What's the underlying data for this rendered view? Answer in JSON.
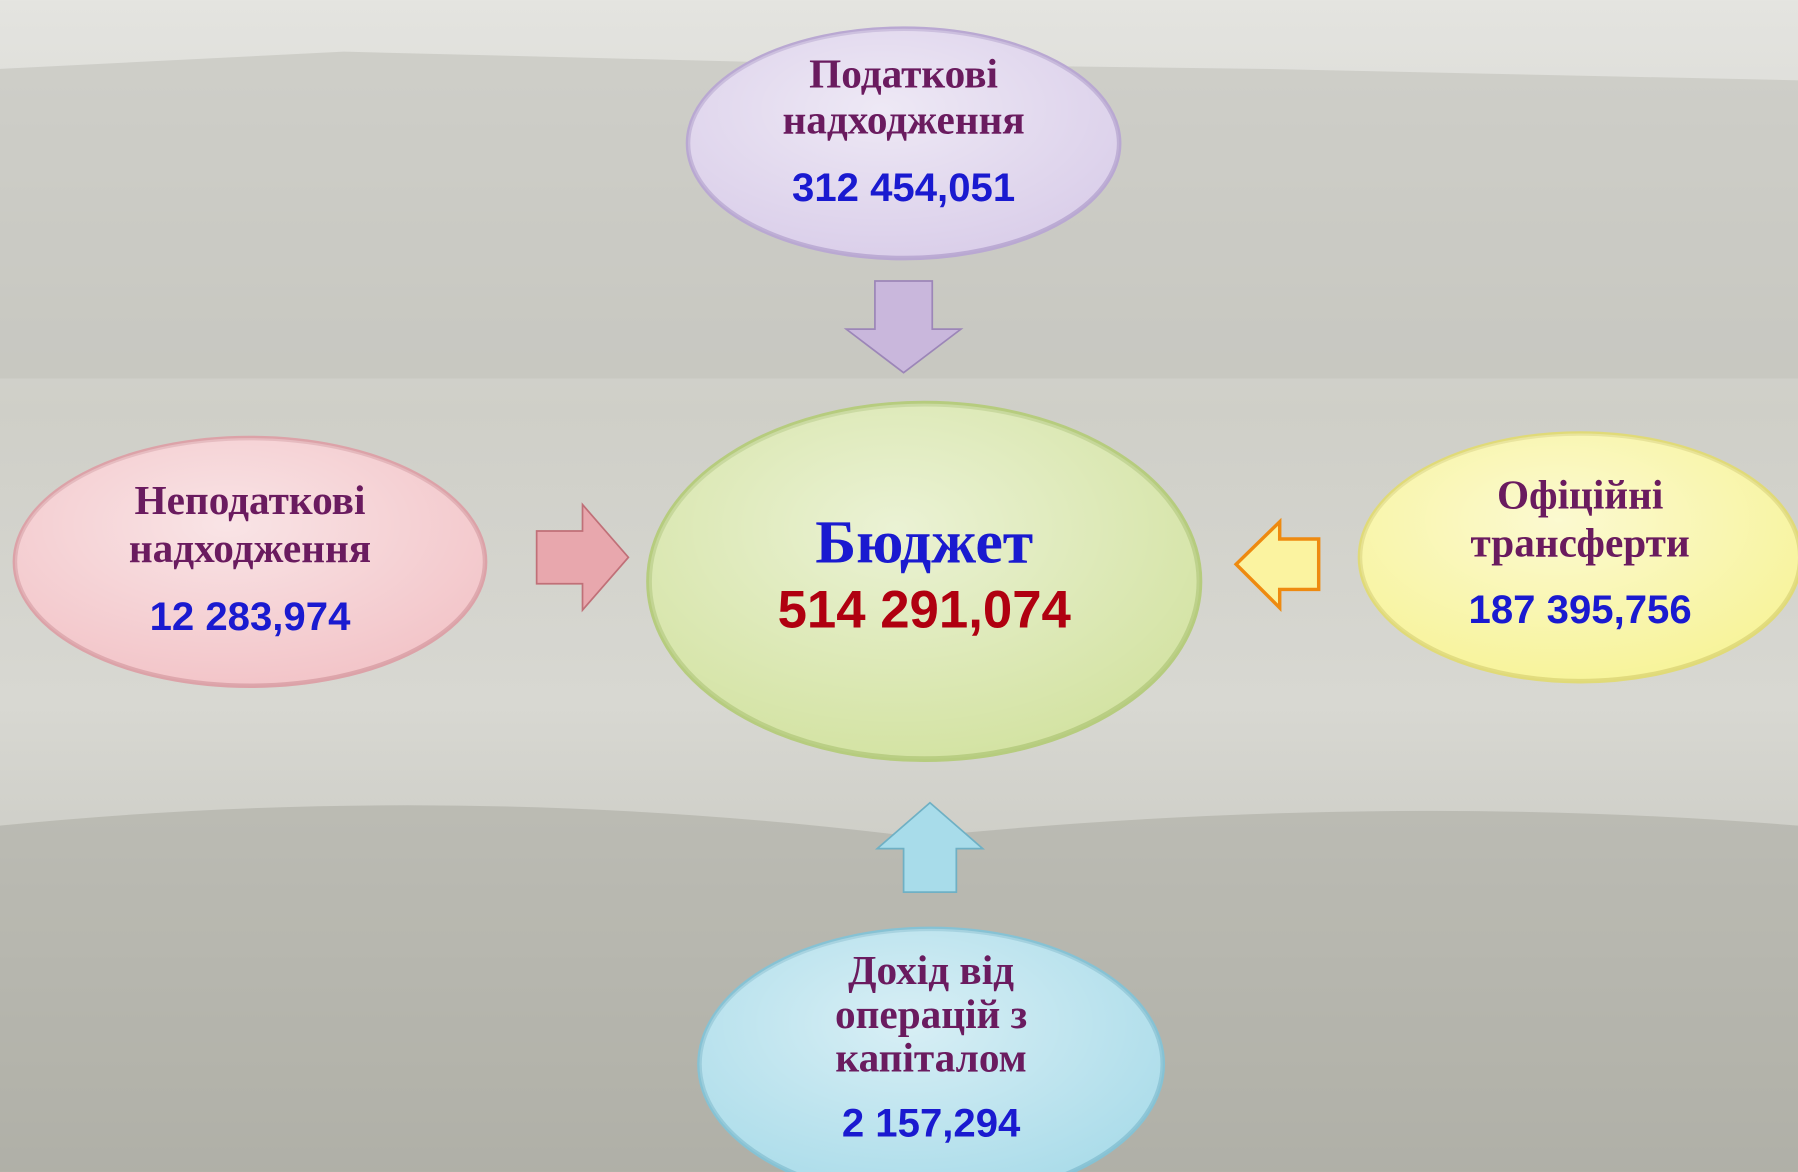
{
  "center": {
    "title": "Бюджет",
    "value": "514 291,074"
  },
  "nodes": [
    {
      "label": [
        "Податкові",
        "надходження"
      ],
      "value": "312 454,051"
    },
    {
      "label": [
        "Неподаткові",
        "надходження"
      ],
      "value": "12 283,974"
    },
    {
      "label": [
        "Офіційні",
        "трансферти"
      ],
      "value": "187 395,756"
    },
    {
      "label": [
        "Дохід від",
        "операцій з",
        "капіталом"
      ],
      "value": "2 157,294"
    }
  ]
}
